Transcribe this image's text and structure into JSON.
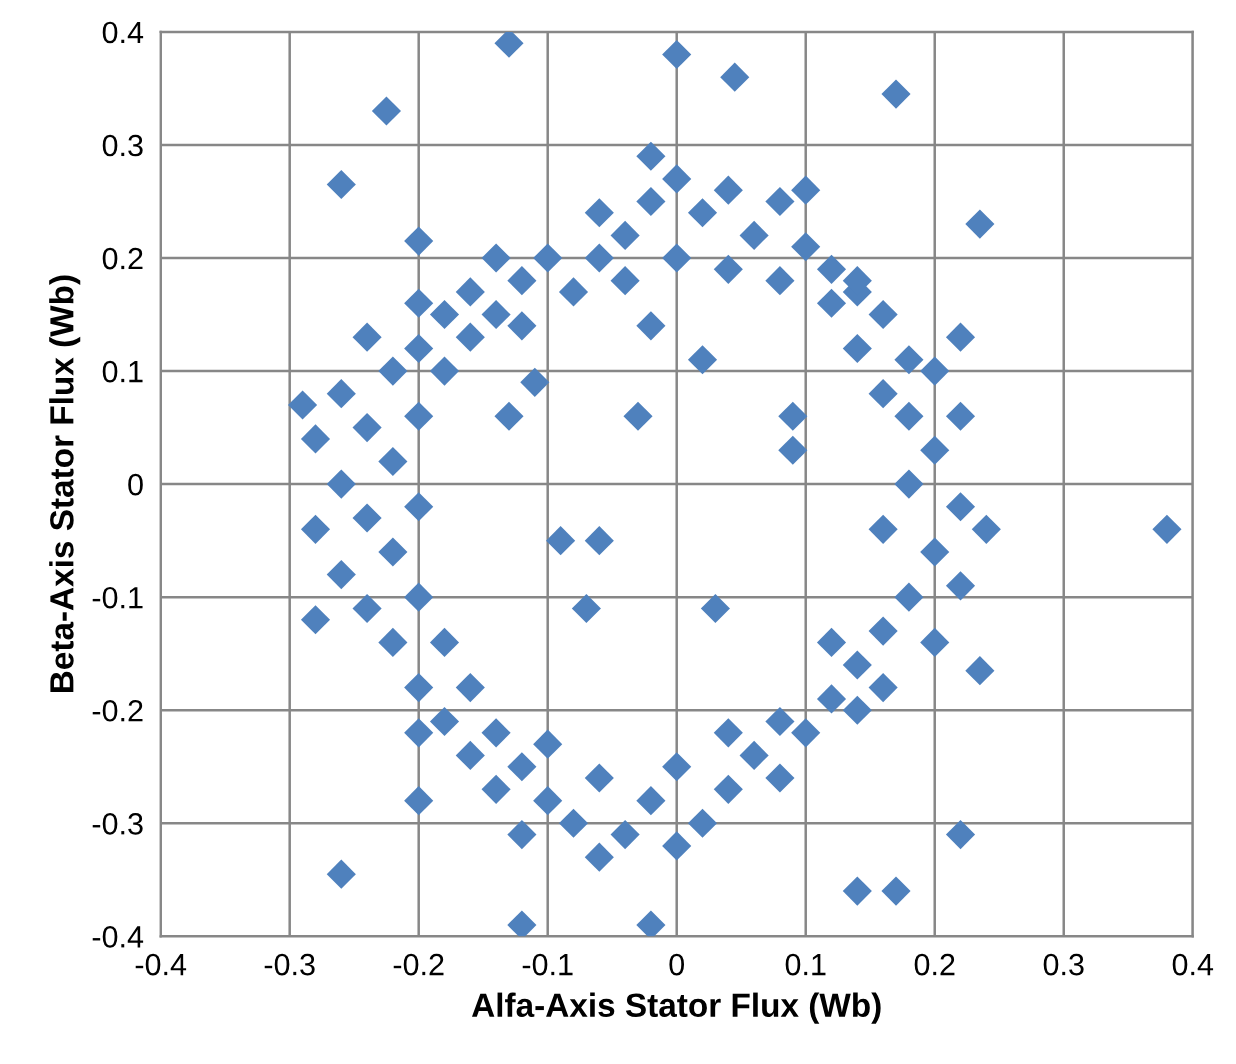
{
  "chart_data": {
    "type": "scatter",
    "xlabel": "Alfa-Axis Stator Flux (Wb)",
    "ylabel": "Beta-Axis Stator Flux (Wb)",
    "x": [
      -0.12,
      -0.1,
      -0.08,
      -0.06,
      -0.04,
      -0.02,
      0,
      0.02,
      0.04,
      0.06,
      0.08,
      0.1,
      0.12,
      0.14,
      -0.14,
      0,
      0.04,
      -0.04,
      0.08,
      -0.06,
      0.1,
      -0.02,
      -0.2,
      -0.18,
      -0.16,
      -0.22,
      -0.18,
      -0.16,
      -0.2,
      -0.14,
      -0.24,
      -0.12,
      -0.26,
      -0.24,
      -0.22,
      -0.26,
      -0.24,
      -0.22,
      -0.26,
      -0.28,
      -0.28,
      -0.2,
      -0.2,
      -0.24,
      -0.2,
      -0.22,
      -0.28,
      -0.29,
      -0.2,
      -0.18,
      -0.16,
      -0.14,
      -0.18,
      -0.16,
      -0.14,
      -0.12,
      -0.2,
      -0.1,
      -0.08,
      -0.06,
      -0.04,
      -0.02,
      0,
      0.02,
      0.04,
      0.06,
      0.08,
      0.1,
      -0.1,
      -0.06,
      0,
      0.04,
      -0.12,
      0.08,
      0.12,
      0.14,
      0.16,
      0.18,
      0.14,
      0.12,
      0.16,
      0.2,
      0.2,
      0.22,
      0.18,
      0.2,
      0.22,
      0.16,
      0.24,
      0.18,
      0.22,
      0.16,
      0.14,
      0.16,
      0.12,
      0.18,
      0.14,
      0.2,
      -0.13,
      0,
      -0.225,
      0.045,
      -0.26,
      0.38,
      -0.26,
      -0.12,
      -0.02,
      0.17,
      0.14,
      0.22,
      0.235,
      0.17,
      -0.13,
      -0.03,
      0.09,
      0.09,
      -0.07,
      0.03,
      -0.09,
      0.02,
      -0.02,
      -0.2,
      -0.2,
      0.22,
      0.235,
      -0.11,
      -0.06
    ],
    "values": [
      0.18,
      0.2,
      0.17,
      0.2,
      0.22,
      0.25,
      0.27,
      0.24,
      0.26,
      0.22,
      0.25,
      0.21,
      0.19,
      0.17,
      0.2,
      0.2,
      0.19,
      0.18,
      0.18,
      0.24,
      0.26,
      0.29,
      0.12,
      0.15,
      0.17,
      0.1,
      0.1,
      0.13,
      0.16,
      0.15,
      0.13,
      0.14,
      0.08,
      0.05,
      0.02,
      0,
      -0.03,
      -0.06,
      -0.08,
      0.04,
      -0.04,
      0.06,
      -0.02,
      -0.11,
      -0.1,
      -0.14,
      -0.12,
      0.07,
      -0.18,
      -0.21,
      -0.24,
      -0.22,
      -0.14,
      -0.18,
      -0.27,
      -0.25,
      -0.22,
      -0.28,
      -0.3,
      -0.26,
      -0.31,
      -0.28,
      -0.25,
      -0.3,
      -0.27,
      -0.24,
      -0.26,
      -0.22,
      -0.23,
      -0.33,
      -0.32,
      -0.22,
      -0.31,
      -0.21,
      -0.19,
      -0.16,
      -0.13,
      -0.1,
      -0.2,
      -0.14,
      -0.18,
      -0.14,
      -0.06,
      -0.02,
      0,
      0.03,
      -0.09,
      -0.04,
      -0.04,
      0.06,
      0.06,
      0.08,
      0.12,
      0.15,
      0.16,
      0.11,
      0.18,
      0.1,
      0.39,
      0.38,
      0.33,
      0.36,
      0.265,
      -0.04,
      -0.345,
      -0.39,
      -0.39,
      -0.36,
      -0.36,
      -0.31,
      0.23,
      0.345,
      0.06,
      0.06,
      0.03,
      0.06,
      -0.11,
      -0.11,
      -0.05,
      0.11,
      0.14,
      0.215,
      -0.28,
      0.13,
      -0.165,
      0.09,
      -0.05
    ],
    "color": "#4f81bd",
    "marker": "diamond",
    "xlim": [
      -0.4,
      0.4
    ],
    "ylim": [
      -0.4,
      0.4
    ],
    "xticks": [
      -0.4,
      -0.3,
      -0.2,
      -0.1,
      0,
      0.1,
      0.2,
      0.3,
      0.4
    ],
    "yticks": [
      -0.4,
      -0.3,
      -0.2,
      -0.1,
      0,
      0.1,
      0.2,
      0.3,
      0.4
    ],
    "grid": true
  }
}
